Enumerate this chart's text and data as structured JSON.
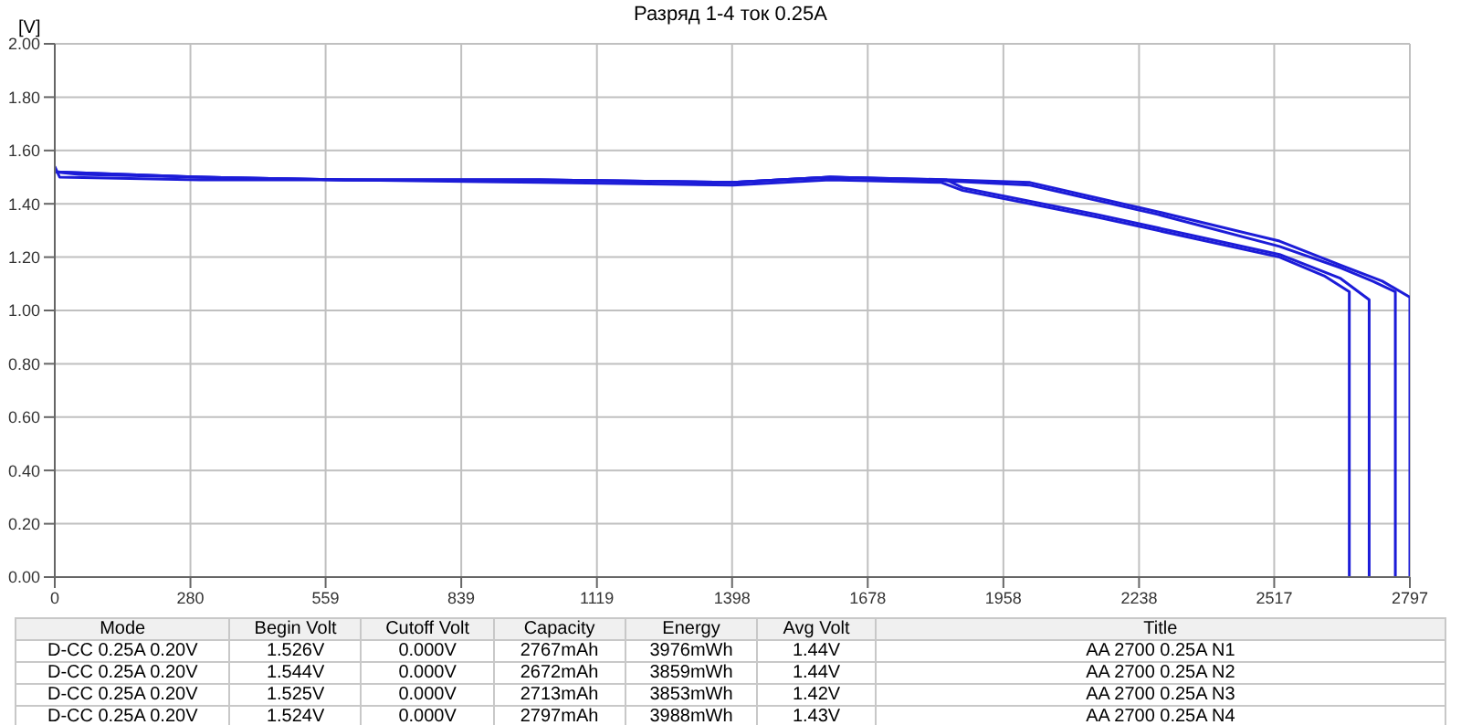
{
  "chart_data": {
    "type": "line",
    "title": "Разряд 1-4 ток 0.25A",
    "ylabel": "[V]",
    "xlim": [
      0,
      2797
    ],
    "xticks": [
      0,
      280,
      559,
      839,
      1119,
      1398,
      1678,
      1958,
      2238,
      2517,
      2797
    ],
    "ylim": [
      0,
      2
    ],
    "yticks": [
      {
        "value": 0,
        "label": "0.00"
      },
      {
        "value": 0.2,
        "label": "0.20"
      },
      {
        "value": 0.4,
        "label": "0.40"
      },
      {
        "value": 0.6,
        "label": "0.60"
      },
      {
        "value": 0.8,
        "label": "0.80"
      },
      {
        "value": 1,
        "label": "1.00"
      },
      {
        "value": 1.2,
        "label": "1.20"
      },
      {
        "value": 1.4,
        "label": "1.40"
      },
      {
        "value": 1.6,
        "label": "1.60"
      },
      {
        "value": 1.8,
        "label": "1.80"
      },
      {
        "value": 2,
        "label": "2.00"
      }
    ],
    "grid": true,
    "legend": false,
    "marker": "none",
    "line_style": "solid",
    "series": [
      {
        "color": "#1c1cd8",
        "x": [
          0,
          50,
          300,
          600,
          1000,
          1400,
          1600,
          1800,
          1900,
          2013,
          2277,
          2528,
          2654,
          2720,
          2767,
          2767
        ],
        "values": [
          1.52,
          1.51,
          1.5,
          1.49,
          1.49,
          1.48,
          1.5,
          1.49,
          1.48,
          1.47,
          1.36,
          1.24,
          1.16,
          1.11,
          1.07,
          0
        ]
      },
      {
        "color": "#1c1cd8",
        "x": [
          0,
          10,
          300,
          600,
          1000,
          1400,
          1600,
          1830,
          1874,
          2151,
          2528,
          2620,
          2672,
          2672
        ],
        "values": [
          1.54,
          1.5,
          1.49,
          1.49,
          1.48,
          1.47,
          1.49,
          1.48,
          1.45,
          1.35,
          1.2,
          1.13,
          1.07,
          0
        ]
      },
      {
        "color": "#1c1cd8",
        "x": [
          0,
          300,
          600,
          1000,
          1400,
          1600,
          1840,
          1874,
          2151,
          2528,
          2654,
          2713,
          2713
        ],
        "values": [
          1.52,
          1.5,
          1.49,
          1.49,
          1.48,
          1.5,
          1.49,
          1.46,
          1.36,
          1.21,
          1.12,
          1.04,
          0
        ]
      },
      {
        "color": "#1c1cd8",
        "x": [
          0,
          300,
          600,
          1000,
          1400,
          1600,
          1850,
          2013,
          2277,
          2528,
          2654,
          2740,
          2797,
          2797
        ],
        "values": [
          1.52,
          1.5,
          1.49,
          1.49,
          1.48,
          1.5,
          1.49,
          1.48,
          1.37,
          1.26,
          1.17,
          1.11,
          1.05,
          0
        ]
      }
    ],
    "annotations": [
      "Mode",
      "Begin Volt",
      "Cutoff Volt",
      "Capacity",
      "Energy",
      "Avg Volt",
      "Title",
      "D-CC 0.25A  0.20V",
      "1.526V",
      "0.000V",
      "2767mAh",
      "3976mWh",
      "1.44V",
      "AA 2700 0.25A N1",
      "D-CC 0.25A  0.20V",
      "1.544V",
      "0.000V",
      "2672mAh",
      "3859mWh",
      "1.44V",
      "AA 2700 0.25A N2",
      "D-CC 0.25A  0.20V",
      "1.525V",
      "0.000V",
      "2713mAh",
      "3853mWh",
      "1.42V",
      "AA 2700 0.25A N3",
      "D-CC 0.25A  0.20V",
      "1.524V",
      "0.000V",
      "2797mAh",
      "3988mWh",
      "1.43V",
      "AA 2700 0.25A N4"
    ]
  }
}
